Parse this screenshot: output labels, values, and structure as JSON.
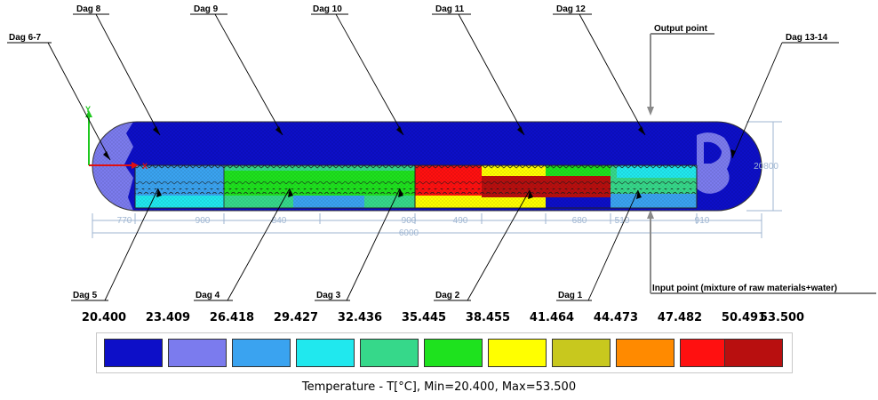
{
  "callouts": {
    "day_8": "Dag 8",
    "day_9": "Dag 9",
    "day_10": "Dag 10",
    "day_11": "Dag 11",
    "day_12": "Dag 12",
    "day_6_7": "Dag 6-7",
    "day_13_14": "Dag 13-14",
    "output_point": "Output point",
    "day_5": "Dag 5",
    "day_4": "Dag 4",
    "day_3": "Dag 3",
    "day_2": "Dag 2",
    "day_1": "Dag 1",
    "input_point": "Input point (mixture of raw materials+water)"
  },
  "axes": {
    "y": "Y",
    "x": "X"
  },
  "dimensions": {
    "segments": [
      "770",
      "900",
      "840",
      "900",
      "490",
      "680",
      "510",
      "910"
    ],
    "total_length": "6000",
    "diameter": "20800"
  },
  "legend": {
    "title": "Temperature  - T[°C], Min=20.400, Max=53.500",
    "scale_labels": [
      "20.400",
      "23.409",
      "26.418",
      "29.427",
      "32.436",
      "35.445",
      "38.455",
      "41.464",
      "44.473",
      "47.482",
      "50.491",
      "53.500"
    ],
    "colors": [
      "#0d0fc8",
      "#7b7bee",
      "#3aa3f0",
      "#20e8ee",
      "#36d88a",
      "#1ee21e",
      "#ffff00",
      "#c8c81e",
      "#ff8a00",
      "#ff1010",
      "#b80f0f"
    ]
  },
  "colors": {
    "tank_top": "#0d0fc8",
    "cap_left": "#7b7bee",
    "dimension_lines": "#9fb6d2",
    "axis_y": "#1ec81e",
    "axis_x": "#e01010"
  }
}
